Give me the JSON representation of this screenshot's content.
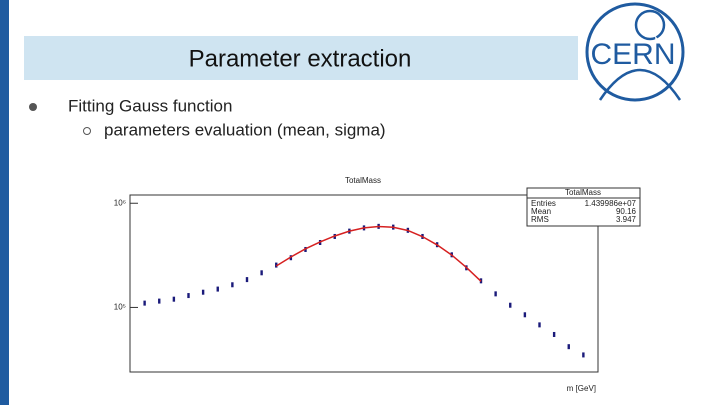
{
  "header": {
    "title": "Parameter extraction",
    "logo": "CERN"
  },
  "bullets": [
    {
      "text": "Fitting Gauss function",
      "children": [
        {
          "text": "parameters evaluation (mean, sigma)"
        }
      ]
    }
  ],
  "chart_data": {
    "type": "scatter",
    "title": "TotalMass",
    "x_label": "m [GeV]",
    "stats": {
      "title": "TotalMass",
      "rows": [
        [
          "Entries",
          "1.439986e+07"
        ],
        [
          "Mean",
          "90.16"
        ],
        [
          "RMS",
          "3.947"
        ]
      ]
    },
    "x": [
      60,
      62,
      64,
      66,
      68,
      70,
      72,
      74,
      76,
      78,
      80,
      82,
      84,
      86,
      88,
      90,
      92,
      94,
      96,
      98,
      100,
      102,
      104,
      106,
      108,
      110,
      112,
      114,
      116,
      118,
      120
    ],
    "series": [
      {
        "color": "#1a1a7a",
        "mode": "markers",
        "values": [
          110000,
          115000,
          120000,
          130000,
          140000,
          150000,
          165000,
          185000,
          215000,
          255000,
          300000,
          360000,
          420000,
          480000,
          540000,
          580000,
          600000,
          590000,
          550000,
          480000,
          400000,
          320000,
          240000,
          180000,
          135000,
          105000,
          85000,
          68000,
          55000,
          42000,
          35000
        ]
      },
      {
        "color": "#d62020",
        "mode": "line",
        "values": [
          null,
          null,
          null,
          null,
          null,
          null,
          null,
          null,
          null,
          250000,
          305000,
          365000,
          425000,
          485000,
          540000,
          580000,
          598000,
          588000,
          548000,
          478000,
          398000,
          318000,
          242000,
          178000,
          null,
          null,
          null,
          null,
          null,
          null,
          null
        ]
      }
    ],
    "xlim": [
      58,
      122
    ],
    "ylim": [
      24000,
      1200000
    ],
    "log_y": true,
    "yticks": [
      {
        "value": 100000,
        "label": "10⁵"
      },
      {
        "value": 1000000,
        "label": "10⁶"
      }
    ]
  }
}
